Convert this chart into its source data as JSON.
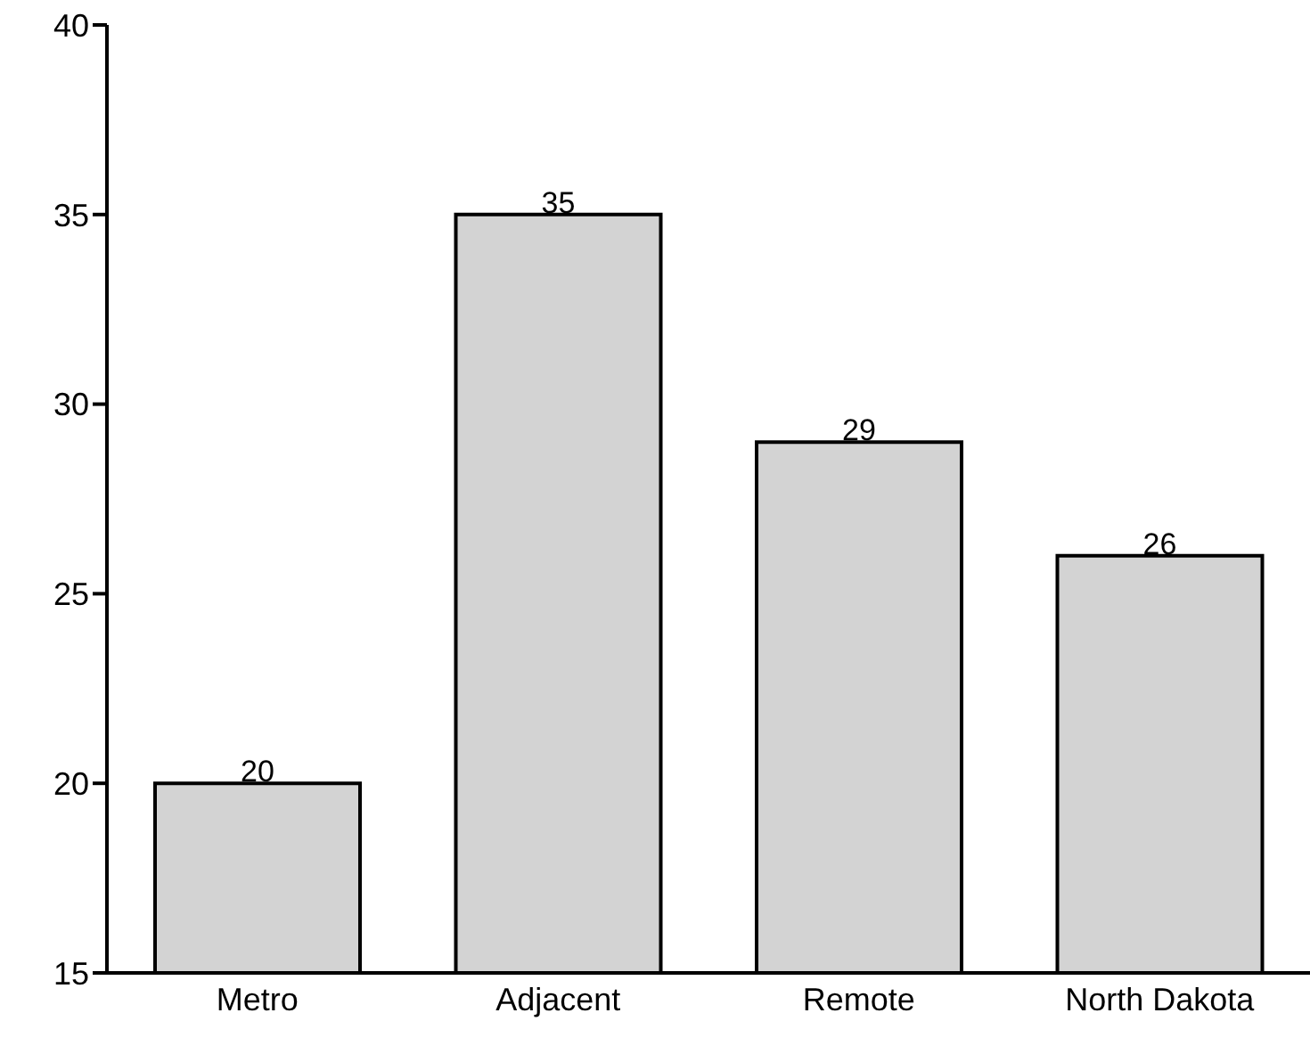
{
  "chart_data": {
    "type": "bar",
    "categories": [
      "Metro",
      "Adjacent",
      "Remote",
      "North Dakota"
    ],
    "values": [
      20,
      35,
      29,
      26
    ],
    "color": "#d3d3d3",
    "ylim": [
      15,
      40
    ],
    "yticks": [
      15,
      20,
      25,
      30,
      35,
      40
    ],
    "data_labels": true,
    "grid": false,
    "legend": false
  }
}
